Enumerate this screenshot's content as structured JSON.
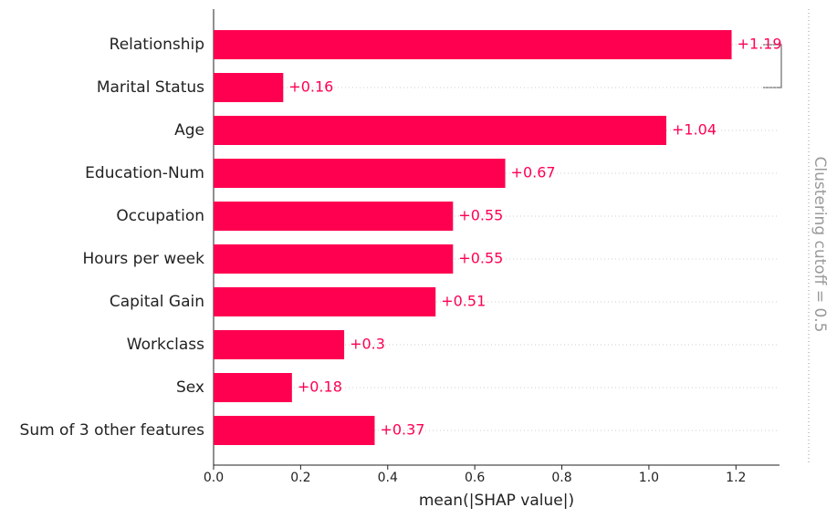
{
  "chart_data": {
    "type": "bar",
    "orientation": "horizontal",
    "categories": [
      "Relationship",
      "Marital Status",
      "Age",
      "Education-Num",
      "Occupation",
      "Hours per week",
      "Capital Gain",
      "Workclass",
      "Sex",
      "Sum of 3 other features"
    ],
    "values": [
      1.19,
      0.16,
      1.04,
      0.67,
      0.55,
      0.55,
      0.51,
      0.3,
      0.18,
      0.37
    ],
    "value_labels": [
      "+1.19",
      "+0.16",
      "+1.04",
      "+0.67",
      "+0.55",
      "+0.55",
      "+0.51",
      "+0.3",
      "+0.18",
      "+0.37"
    ],
    "color": "#ff0051",
    "xlabel": "mean(|SHAP value|)",
    "xlim": [
      0,
      1.3
    ],
    "xticks": [
      {
        "value": 0,
        "label": "0.0"
      },
      0.2,
      0.4,
      0.6,
      0.8,
      {
        "value": 1,
        "label": "1.0"
      },
      1.2
    ],
    "annotation": "Clustering cutoff = 0.5"
  }
}
